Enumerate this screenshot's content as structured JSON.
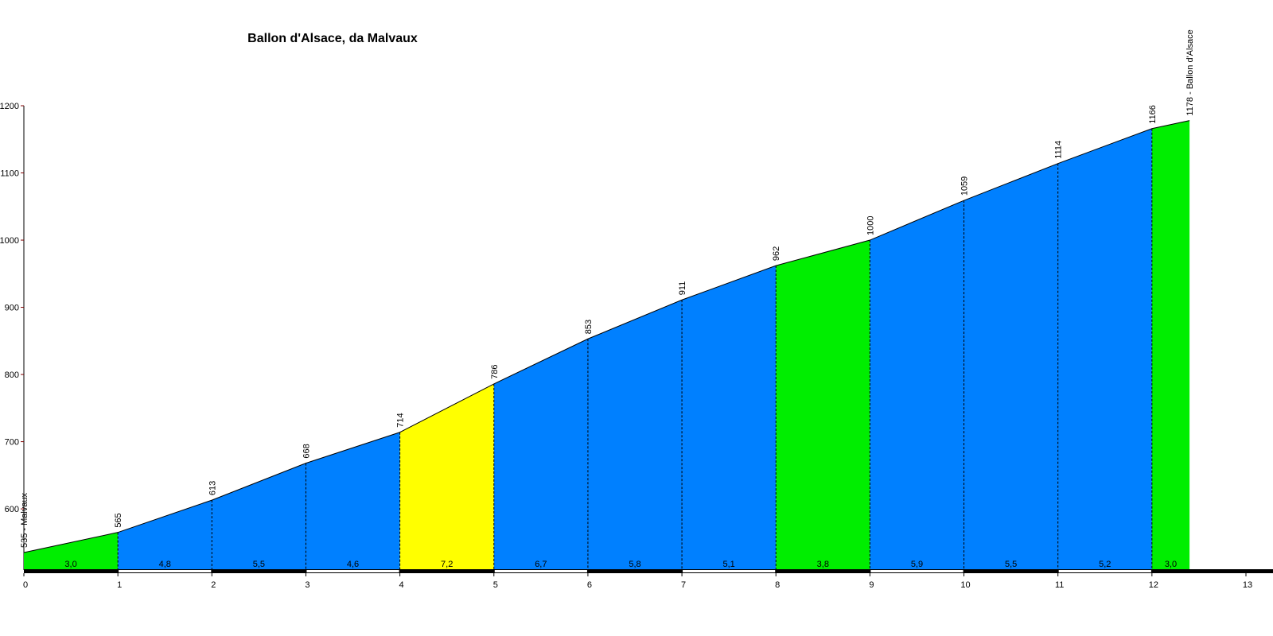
{
  "chart_data": {
    "type": "area",
    "title": "Ballon d'Alsace, da Malvaux",
    "x": [
      0,
      1,
      2,
      3,
      4,
      5,
      6,
      7,
      8,
      9,
      10,
      11,
      12,
      12.4
    ],
    "values": [
      535,
      565,
      613,
      668,
      714,
      786,
      853,
      911,
      962,
      1000,
      1059,
      1114,
      1166,
      1178
    ],
    "value_labels": [
      "535 - Malvaux",
      "565",
      "613",
      "668",
      "714",
      "786",
      "853",
      "911",
      "962",
      "1000",
      "1059",
      "1114",
      "1166",
      "1178 - Ballon d'Alsace"
    ],
    "segments": {
      "values": [
        3.0,
        4.8,
        5.5,
        4.6,
        7.2,
        6.7,
        5.8,
        5.1,
        3.8,
        5.9,
        5.5,
        5.2,
        3.0
      ],
      "value_labels": [
        "3,0",
        "4,8",
        "5,5",
        "4,6",
        "7,2",
        "6,7",
        "5,8",
        "5,1",
        "3,8",
        "5,9",
        "5,5",
        "5,2",
        "3,0"
      ],
      "colors": [
        "#00ee00",
        "#0080ff",
        "#0080ff",
        "#0080ff",
        "#ffff00",
        "#0080ff",
        "#0080ff",
        "#0080ff",
        "#00ee00",
        "#0080ff",
        "#0080ff",
        "#0080ff",
        "#00ee00"
      ]
    },
    "xlim": [
      0,
      13
    ],
    "xticks": [
      0,
      1,
      2,
      3,
      4,
      5,
      6,
      7,
      8,
      9,
      10,
      11,
      12,
      13
    ],
    "ylim": [
      509,
      1200
    ],
    "yticks": [
      600,
      700,
      800,
      900,
      1000,
      1100,
      1200
    ]
  }
}
